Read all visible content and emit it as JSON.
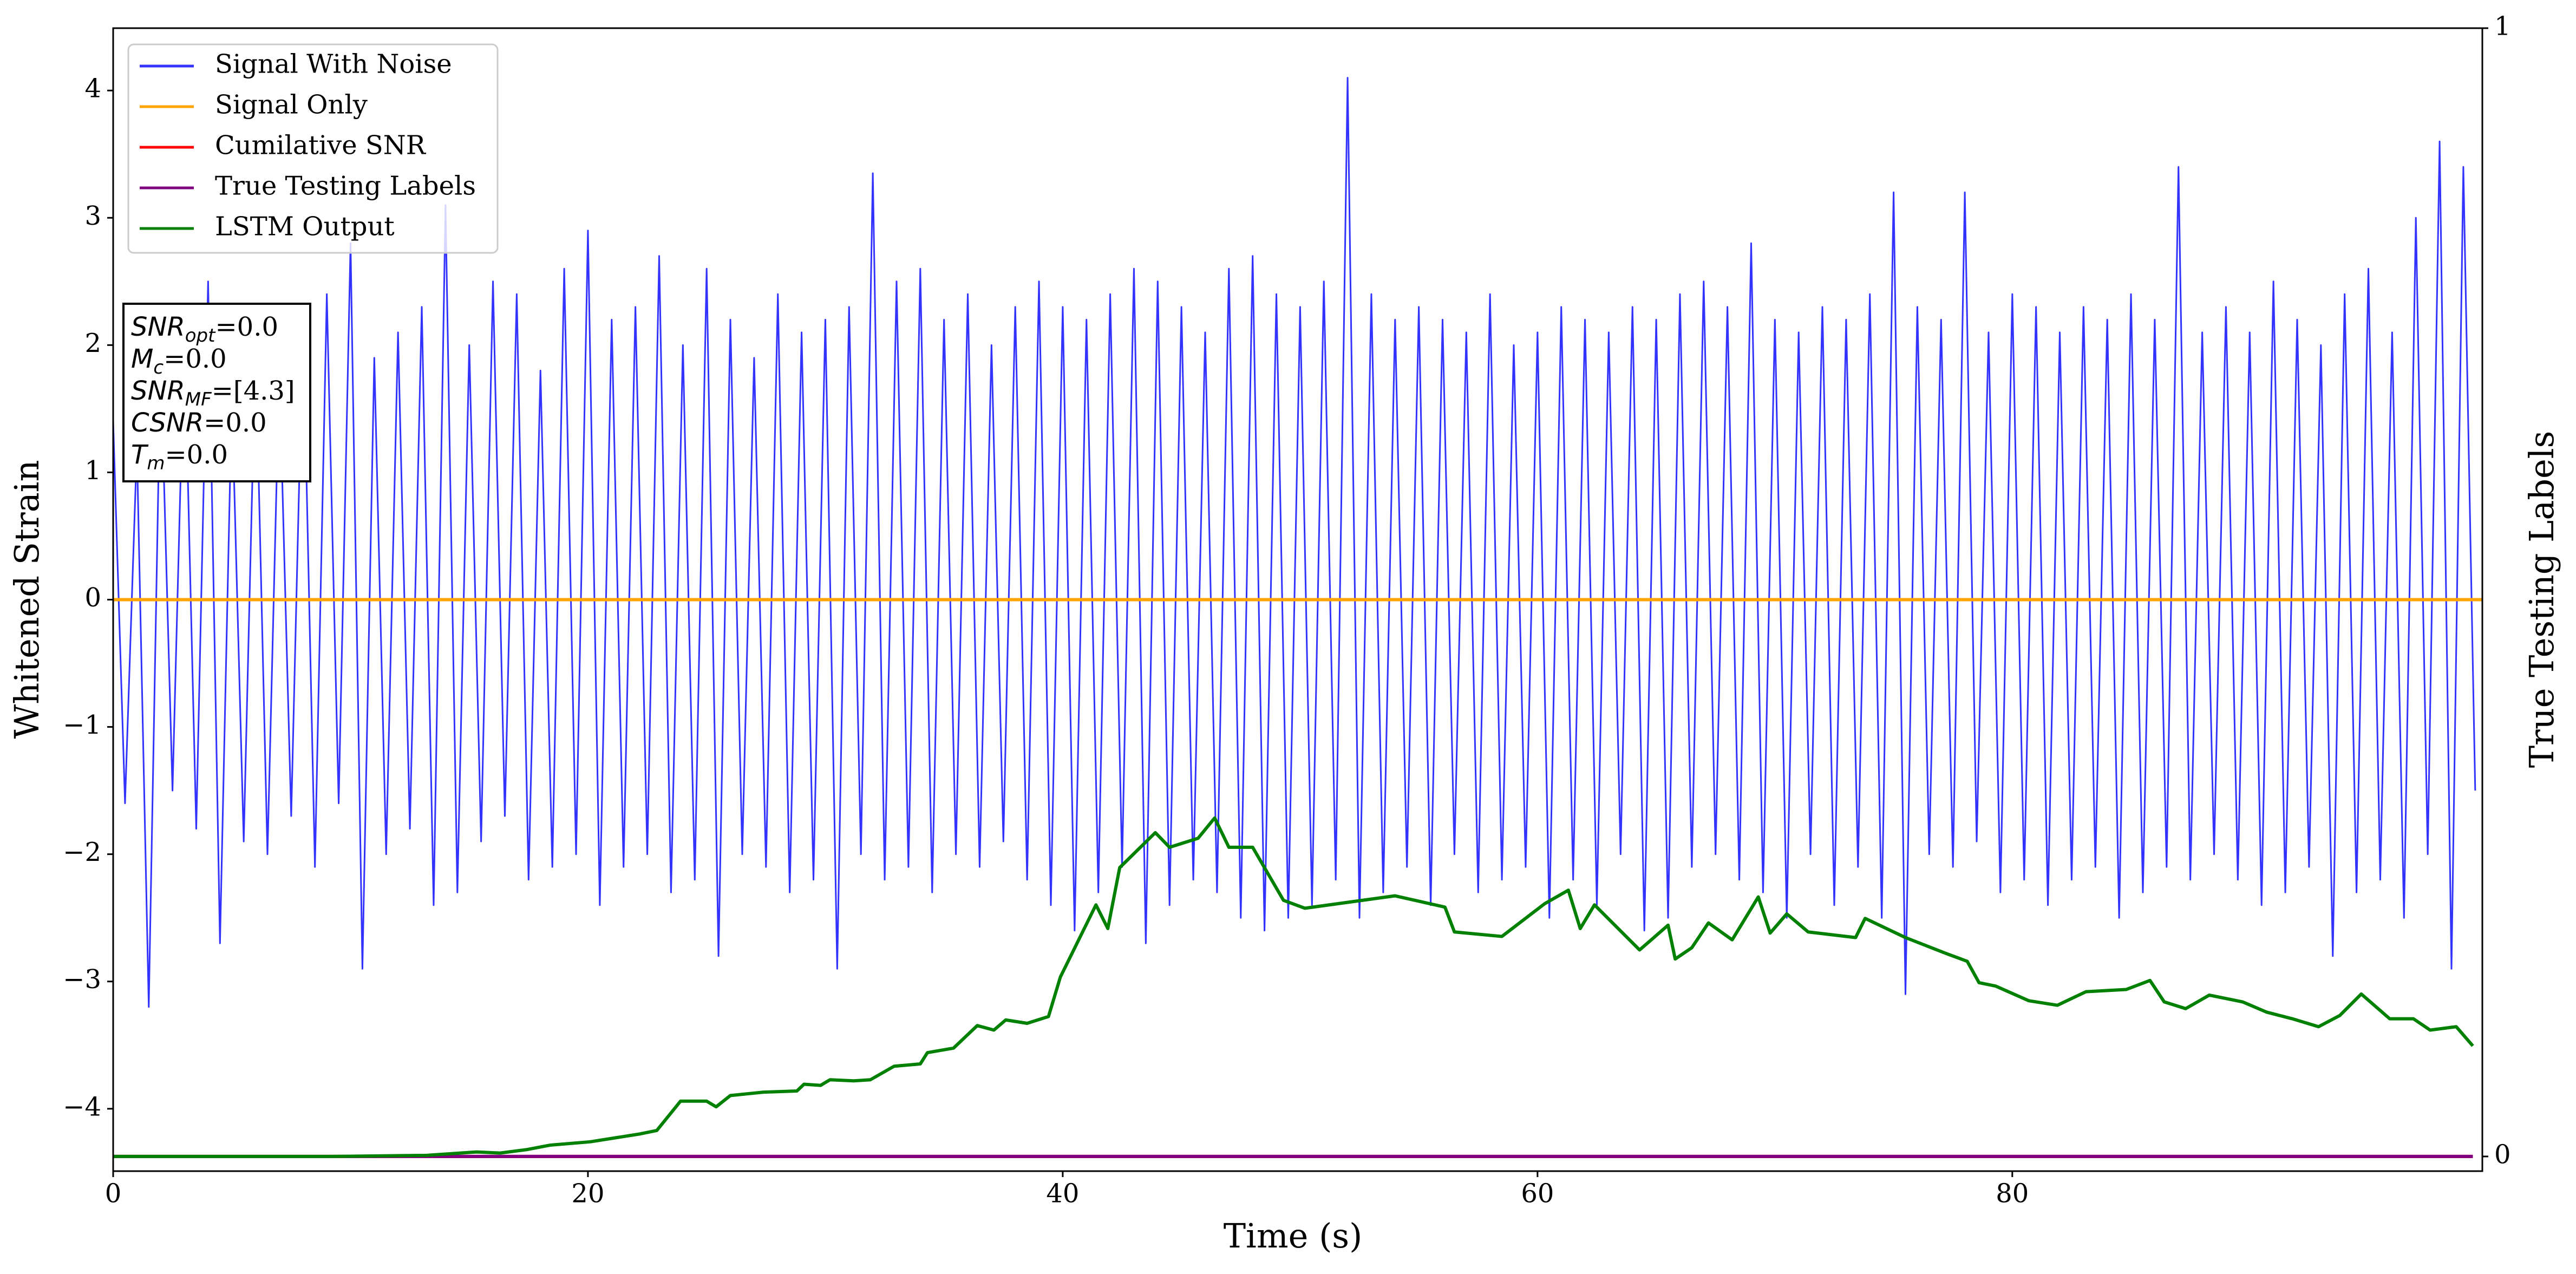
{
  "chart_data": {
    "type": "line",
    "xlabel": "Time (s)",
    "ylabel": "Whitened Strain",
    "y2label": "True Testing Labels",
    "xlim": [
      0,
      99.8
    ],
    "ylim": [
      -4.49,
      4.49
    ],
    "y2lim": [
      -0.013,
      1
    ],
    "xticks": [
      0,
      20,
      40,
      60,
      80
    ],
    "yticks": [
      {
        "value": -4,
        "label": "−4"
      },
      {
        "value": -3,
        "label": "−3"
      },
      {
        "value": -2,
        "label": "−2"
      },
      {
        "value": -1,
        "label": "−1"
      },
      0,
      1,
      2,
      3,
      4
    ],
    "y2ticks": [
      0,
      1
    ],
    "grid": false,
    "legend_loc": "upper left",
    "annotation": [
      {
        "main": "SNR",
        "sub": "opt",
        "rest": "=0.0"
      },
      {
        "main": "M",
        "sub": "c",
        "rest": "=0.0"
      },
      {
        "main": "SNR",
        "sub": "MF",
        "rest": "=[4.3]"
      },
      {
        "main": "CSNR",
        "rest": "=0.0"
      },
      {
        "main": "T",
        "sub": "m",
        "rest": "=0.0"
      }
    ],
    "series": [
      {
        "name": "Signal With Noise",
        "color": "#3333ff",
        "axis": "y",
        "x": [
          0,
          0.5,
          1,
          1.5,
          2,
          2.5,
          3,
          3.5,
          4,
          4.5,
          5,
          5.5,
          6,
          6.5,
          7,
          7.5,
          8,
          8.5,
          9,
          9.5,
          10,
          10.5,
          11,
          11.5,
          12,
          12.5,
          13,
          13.5,
          14,
          14.5,
          15,
          15.5,
          16,
          16.5,
          17,
          17.5,
          18,
          18.5,
          19,
          19.5,
          20,
          20.5,
          21,
          21.5,
          22,
          22.5,
          23,
          23.5,
          24,
          24.5,
          25,
          25.5,
          26,
          26.5,
          27,
          27.5,
          28,
          28.5,
          29,
          29.5,
          30,
          30.5,
          31,
          31.5,
          32,
          32.5,
          33,
          33.5,
          34,
          34.5,
          35,
          35.5,
          36,
          36.5,
          37,
          37.5,
          38,
          38.5,
          39,
          39.5,
          40,
          40.5,
          41,
          41.5,
          42,
          42.5,
          43,
          43.5,
          44,
          44.5,
          45,
          45.5,
          46,
          46.5,
          47,
          47.5,
          48,
          48.5,
          49,
          49.5,
          50,
          50.5,
          51,
          51.5,
          52,
          52.5,
          53,
          53.5,
          54,
          54.5,
          55,
          55.5,
          56,
          56.5,
          57,
          57.5,
          58,
          58.5,
          59,
          59.5,
          60,
          60.5,
          61,
          61.5,
          62,
          62.5,
          63,
          63.5,
          64,
          64.5,
          65,
          65.5,
          66,
          66.5,
          67,
          67.5,
          68,
          68.5,
          69,
          69.5,
          70,
          70.5,
          71,
          71.5,
          72,
          72.5,
          73,
          73.5,
          74,
          74.5,
          75,
          75.5,
          76,
          76.5,
          77,
          77.5,
          78,
          78.5,
          79,
          79.5,
          80,
          80.5,
          81,
          81.5,
          82,
          82.5,
          83,
          83.5,
          84,
          84.5,
          85,
          85.5,
          86,
          86.5,
          87,
          87.5,
          88,
          88.5,
          89,
          89.5,
          90,
          90.5,
          91,
          91.5,
          92,
          92.5,
          93,
          93.5,
          94,
          94.5,
          95,
          95.5,
          96,
          96.5,
          97,
          97.5,
          98,
          98.5,
          99,
          99.5
        ],
        "values": [
          1.4,
          -1.6,
          1.2,
          -3.2,
          1.9,
          -1.5,
          2.1,
          -1.8,
          2.5,
          -2.7,
          1.6,
          -1.9,
          2.0,
          -2.0,
          1.8,
          -1.7,
          2.2,
          -2.1,
          2.4,
          -1.6,
          2.8,
          -2.9,
          1.9,
          -2.0,
          2.1,
          -1.8,
          2.3,
          -2.4,
          3.1,
          -2.3,
          2.0,
          -1.9,
          2.5,
          -1.7,
          2.4,
          -2.2,
          1.8,
          -2.1,
          2.6,
          -2.0,
          2.9,
          -2.4,
          2.2,
          -2.1,
          2.3,
          -2.0,
          2.7,
          -2.3,
          2.0,
          -2.2,
          2.6,
          -2.8,
          2.2,
          -2.0,
          1.9,
          -2.1,
          2.4,
          -2.3,
          2.1,
          -2.2,
          2.2,
          -2.9,
          2.3,
          -2.0,
          3.35,
          -2.2,
          2.5,
          -2.1,
          2.6,
          -2.3,
          2.2,
          -2.0,
          2.4,
          -2.1,
          2.0,
          -1.9,
          2.3,
          -2.2,
          2.5,
          -2.4,
          2.3,
          -2.6,
          2.2,
          -2.3,
          2.4,
          -2.1,
          2.6,
          -2.7,
          2.5,
          -2.4,
          2.3,
          -2.2,
          2.1,
          -2.3,
          2.6,
          -2.5,
          2.7,
          -2.6,
          2.4,
          -2.5,
          2.3,
          -2.4,
          2.5,
          -2.2,
          4.1,
          -2.5,
          2.4,
          -2.3,
          2.2,
          -2.1,
          2.3,
          -2.4,
          2.2,
          -2.0,
          2.1,
          -2.3,
          2.4,
          -2.2,
          2.0,
          -2.1,
          2.1,
          -2.5,
          2.3,
          -2.2,
          2.2,
          -2.4,
          2.1,
          -2.0,
          2.3,
          -2.6,
          2.2,
          -2.5,
          2.4,
          -2.1,
          2.5,
          -2.0,
          2.3,
          -2.2,
          2.8,
          -2.3,
          2.2,
          -2.5,
          2.1,
          -2.0,
          2.3,
          -2.4,
          2.2,
          -2.1,
          2.4,
          -2.5,
          3.2,
          -3.1,
          2.3,
          -2.0,
          2.2,
          -2.1,
          3.2,
          -1.9,
          2.1,
          -2.3,
          2.4,
          -2.2,
          2.3,
          -2.4,
          2.1,
          -2.2,
          2.3,
          -2.1,
          2.2,
          -2.5,
          2.4,
          -2.3,
          2.2,
          -2.1,
          3.4,
          -2.2,
          2.1,
          -2.0,
          2.3,
          -2.2,
          2.1,
          -2.4,
          2.5,
          -2.3,
          2.2,
          -2.1,
          2.0,
          -2.8,
          2.4,
          -2.3,
          2.6,
          -2.2,
          2.1,
          -2.5,
          3.0,
          -2.0,
          3.6,
          -2.9,
          3.4,
          -1.5
        ]
      },
      {
        "name": "Signal Only",
        "color": "orange",
        "axis": "y",
        "x": [
          0,
          99.8
        ],
        "values": [
          0,
          0
        ]
      },
      {
        "name": "Cumilative SNR",
        "color": "red",
        "axis": "y2",
        "x": [
          0,
          99.4
        ],
        "values": [
          0,
          0
        ]
      },
      {
        "name": "True Testing Labels",
        "color": "purple",
        "axis": "y2",
        "x": [
          0,
          99.4
        ],
        "values": [
          0,
          0
        ]
      },
      {
        "name": "LSTM Output",
        "color": "green",
        "axis": "y2",
        "x": [
          0,
          9.1,
          13.2,
          15.3,
          16.3,
          17.4,
          18.4,
          20.1,
          22.2,
          22.9,
          23.9,
          25,
          25.4,
          26,
          27.4,
          28.8,
          29.1,
          29.8,
          30.2,
          31.2,
          31.9,
          32.9,
          34,
          34.3,
          35.4,
          36.4,
          37.1,
          37.6,
          38.5,
          39.4,
          39.9,
          41.4,
          41.9,
          42.4,
          43.9,
          44.5,
          45.7,
          46.4,
          47,
          48,
          49.3,
          50.2,
          54,
          56.1,
          56.5,
          58.5,
          60.3,
          61.3,
          61.8,
          62.4,
          64.3,
          65.5,
          65.8,
          66.5,
          67.2,
          68.2,
          69.3,
          69.8,
          70.5,
          71.4,
          73.4,
          73.8,
          75.5,
          77.2,
          78.1,
          78.6,
          79.3,
          80.7,
          81.9,
          83.1,
          84.8,
          85.8,
          86.4,
          87.3,
          88.3,
          89.7,
          90.7,
          91.8,
          92.9,
          93.8,
          94.7,
          95.9,
          96.9,
          97.6,
          98.7,
          99.4
        ],
        "values": [
          0,
          0,
          0.001,
          0.004,
          0.003,
          0.006,
          0.01,
          0.013,
          0.02,
          0.023,
          0.049,
          0.049,
          0.044,
          0.054,
          0.057,
          0.058,
          0.064,
          0.063,
          0.068,
          0.067,
          0.068,
          0.08,
          0.082,
          0.092,
          0.096,
          0.116,
          0.112,
          0.121,
          0.118,
          0.124,
          0.159,
          0.223,
          0.202,
          0.256,
          0.287,
          0.274,
          0.282,
          0.3,
          0.274,
          0.274,
          0.227,
          0.22,
          0.231,
          0.221,
          0.199,
          0.195,
          0.224,
          0.236,
          0.202,
          0.223,
          0.183,
          0.205,
          0.175,
          0.185,
          0.207,
          0.192,
          0.23,
          0.198,
          0.215,
          0.199,
          0.194,
          0.211,
          0.194,
          0.18,
          0.173,
          0.154,
          0.151,
          0.138,
          0.134,
          0.146,
          0.148,
          0.156,
          0.137,
          0.131,
          0.143,
          0.137,
          0.128,
          0.122,
          0.115,
          0.125,
          0.144,
          0.122,
          0.122,
          0.112,
          0.115,
          0.098
        ]
      }
    ]
  }
}
